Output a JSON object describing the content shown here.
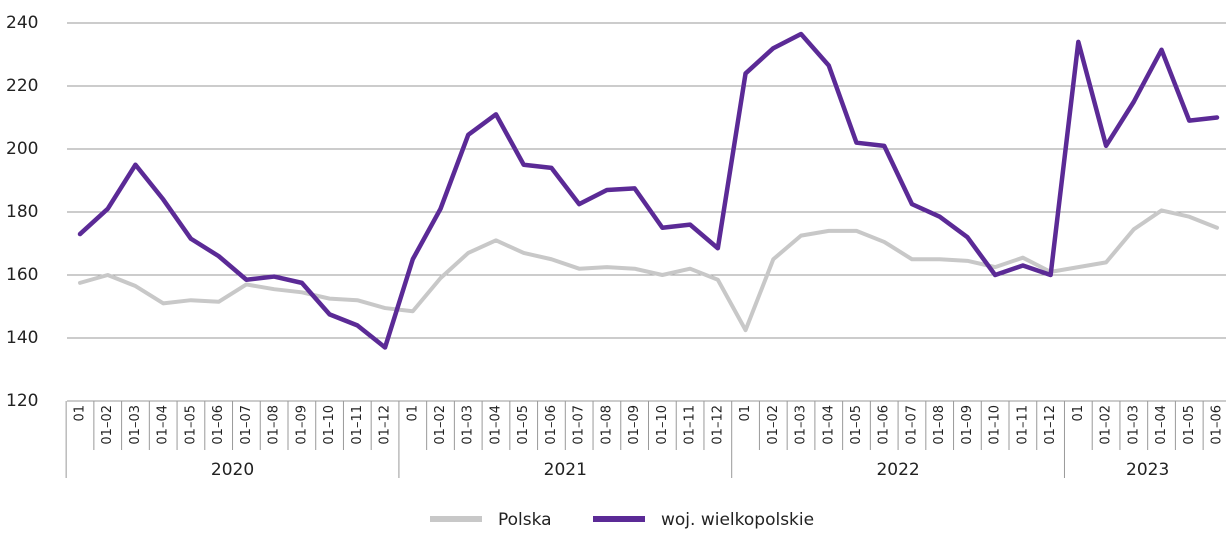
{
  "chart_data": {
    "type": "line",
    "category_groups": [
      {
        "name": "2020",
        "categories": [
          "01",
          "01–02",
          "01–03",
          "01–04",
          "01–05",
          "01–06",
          "01–07",
          "01–08",
          "01–09",
          "01–10",
          "01–11",
          "01–12"
        ]
      },
      {
        "name": "2021",
        "categories": [
          "01",
          "01–02",
          "01–03",
          "01–04",
          "01–05",
          "01–06",
          "01–07",
          "01–08",
          "01–09",
          "01–10",
          "01–11",
          "01–12"
        ]
      },
      {
        "name": "2022",
        "categories": [
          "01",
          "01–02",
          "01–03",
          "01–04",
          "01–05",
          "01–06",
          "01–07",
          "01–08",
          "01–09",
          "01–10",
          "01–11",
          "01–12"
        ]
      },
      {
        "name": "2023",
        "categories": [
          "01",
          "01–02",
          "01–03",
          "01–04",
          "01–05",
          "01–06"
        ]
      }
    ],
    "series": [
      {
        "name": "Polska",
        "color": "#c8c8c8",
        "values": [
          157.5,
          160,
          156.5,
          151,
          152,
          151.5,
          157,
          155.5,
          154.5,
          152.5,
          152,
          149.5,
          148.5,
          159,
          167,
          171,
          167,
          165,
          162,
          162.5,
          162,
          160,
          162,
          158.5,
          142.5,
          165,
          172.5,
          174,
          174,
          170.5,
          165,
          165,
          164.5,
          162.5,
          165.5,
          161,
          162.5,
          164,
          174.5,
          180.5,
          178.5,
          175
        ]
      },
      {
        "name": "woj. wielkopolskie",
        "color": "#5b2a96",
        "values": [
          173,
          181,
          195,
          184,
          171.5,
          166,
          158.5,
          159.5,
          157.5,
          147.5,
          144,
          137,
          165,
          181,
          204.5,
          211,
          195,
          194,
          182.5,
          187,
          187.5,
          175,
          176,
          168.5,
          224,
          232,
          236.5,
          226.5,
          202,
          201,
          182.5,
          178.5,
          172,
          160,
          163,
          160,
          234,
          201,
          215,
          231.5,
          209,
          210
        ]
      }
    ],
    "ylim": [
      120,
      240
    ],
    "yticks": [
      120,
      140,
      160,
      180,
      200,
      220,
      240
    ],
    "grid": true,
    "legend": "bottom"
  }
}
